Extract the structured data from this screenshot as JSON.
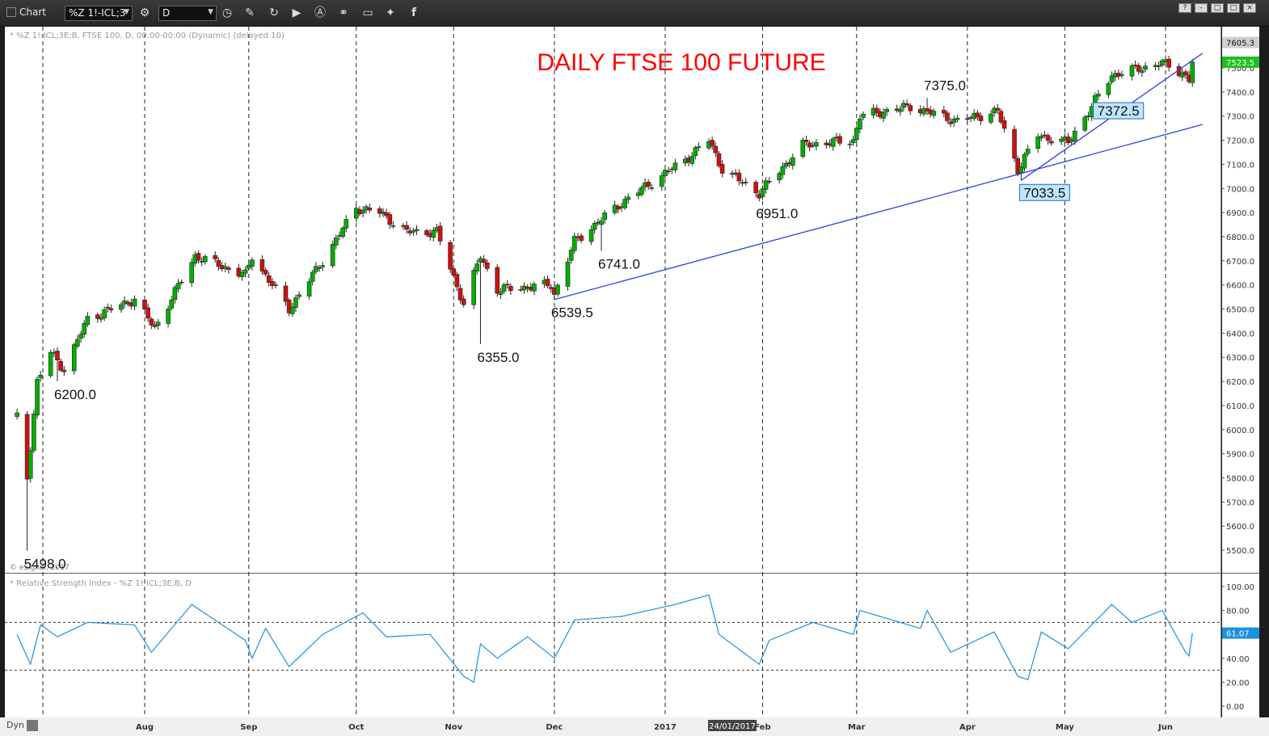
{
  "window": {
    "title": "Chart",
    "symbol": "%Z 1!-ICL;3",
    "interval": "D",
    "buttons": [
      "?",
      "–",
      "□",
      "×"
    ]
  },
  "icons": [
    "grip-icon",
    "settings-icon",
    "clock-icon",
    "pencil-icon",
    "refresh-icon",
    "play-icon",
    "alert-icon",
    "link-icon",
    "comment-icon",
    "twitter-icon",
    "facebook-icon"
  ],
  "colors": {
    "background": "#ffffff",
    "bull_candle": "#00b000",
    "bear_candle": "#d01010",
    "trendline": "#2f3fe8",
    "rsi_line": "#1e90e0",
    "title": "#ff0000",
    "callout_bg": "#bfe6ff"
  },
  "price_pane": {
    "header": "* %Z 1!-ICL;3E;B, FTSE 100, D, 00:00-00:00 (Dynamic) (delayed 10)",
    "watermark": "© eSignal, 2017",
    "title": "DAILY FTSE 100 FUTURE",
    "last_price": "7523.5",
    "high_tag": "7605.3"
  },
  "rsi_pane": {
    "header": "* Relative Strength Index - %Z 1!-ICL;3E;B, D",
    "value_label": "61.07",
    "axis_ticks": [
      "100.00",
      "80.00",
      "60.00",
      "40.00",
      "20.00",
      "0.00"
    ],
    "reference_levels": [
      70,
      30
    ]
  },
  "bottom_bar": {
    "dyn_label": "Dyn",
    "cursor_date": "24/01/2017"
  },
  "chart_data": [
    {
      "type": "candlestick",
      "title": "DAILY FTSE 100 FUTURE",
      "x_axis": {
        "type": "date",
        "start": "2016-06-27",
        "end": "2017-06-12",
        "month_labels": [
          {
            "label": "Aug",
            "date": "2016-08-01"
          },
          {
            "label": "Sep",
            "date": "2016-09-01"
          },
          {
            "label": "Oct",
            "date": "2016-10-03"
          },
          {
            "label": "Nov",
            "date": "2016-11-01"
          },
          {
            "label": "Dec",
            "date": "2016-12-01"
          },
          {
            "label": "2017",
            "date": "2017-01-03"
          },
          {
            "label": "Feb",
            "date": "2017-02-01"
          },
          {
            "label": "Mar",
            "date": "2017-03-01"
          },
          {
            "label": "Apr",
            "date": "2017-04-03"
          },
          {
            "label": "May",
            "date": "2017-05-02"
          },
          {
            "label": "Jun",
            "date": "2017-06-01"
          }
        ]
      },
      "y_axis": {
        "scale": "linear",
        "range": [
          5400,
          7650
        ],
        "ticks": [
          5500,
          5600,
          5700,
          5800,
          5900,
          6000,
          6100,
          6200,
          6300,
          6400,
          6500,
          6600,
          6700,
          6800,
          6900,
          7000,
          7100,
          7200,
          7300,
          7400,
          7500
        ]
      },
      "grid": "vertical dashed lines at month starts",
      "price_path_anchors": [
        {
          "date": "2016-06-24",
          "close": 6050
        },
        {
          "date": "2016-06-27",
          "close": 5800
        },
        {
          "date": "2016-06-30",
          "close": 6200
        },
        {
          "date": "2016-07-04",
          "close": 6320
        },
        {
          "date": "2016-07-08",
          "close": 6250
        },
        {
          "date": "2016-07-15",
          "close": 6460
        },
        {
          "date": "2016-07-29",
          "close": 6540
        },
        {
          "date": "2016-08-04",
          "close": 6420
        },
        {
          "date": "2016-08-16",
          "close": 6720
        },
        {
          "date": "2016-08-31",
          "close": 6640
        },
        {
          "date": "2016-09-02",
          "close": 6720
        },
        {
          "date": "2016-09-13",
          "close": 6500
        },
        {
          "date": "2016-09-23",
          "close": 6700
        },
        {
          "date": "2016-10-03",
          "close": 6920
        },
        {
          "date": "2016-10-10",
          "close": 6900
        },
        {
          "date": "2016-10-18",
          "close": 6820
        },
        {
          "date": "2016-10-27",
          "close": 6820
        },
        {
          "date": "2016-11-04",
          "close": 6520
        },
        {
          "date": "2016-11-09",
          "close": 6720
        },
        {
          "date": "2016-11-14",
          "close": 6580
        },
        {
          "date": "2016-11-30",
          "close": 6600
        },
        {
          "date": "2016-12-01",
          "close": 6560
        },
        {
          "date": "2016-12-07",
          "close": 6780
        },
        {
          "date": "2016-12-21",
          "close": 6940
        },
        {
          "date": "2017-01-09",
          "close": 7120
        },
        {
          "date": "2017-01-16",
          "close": 7200
        },
        {
          "date": "2017-01-20",
          "close": 7080
        },
        {
          "date": "2017-01-31",
          "close": 6980
        },
        {
          "date": "2017-02-13",
          "close": 7180
        },
        {
          "date": "2017-02-28",
          "close": 7200
        },
        {
          "date": "2017-03-02",
          "close": 7300
        },
        {
          "date": "2017-03-17",
          "close": 7340
        },
        {
          "date": "2017-03-31",
          "close": 7280
        },
        {
          "date": "2017-04-12",
          "close": 7320
        },
        {
          "date": "2017-04-18",
          "close": 7080
        },
        {
          "date": "2017-04-24",
          "close": 7220
        },
        {
          "date": "2017-05-03",
          "close": 7190
        },
        {
          "date": "2017-05-16",
          "close": 7470
        },
        {
          "date": "2017-05-31",
          "close": 7520
        },
        {
          "date": "2017-06-06",
          "close": 7480
        },
        {
          "date": "2017-06-08",
          "close": 7450
        },
        {
          "date": "2017-06-09",
          "close": 7523.5
        }
      ],
      "annotations": [
        {
          "text": "5498.0",
          "date": "2016-06-27",
          "price": 5498.0,
          "style": "plain"
        },
        {
          "text": "6200.0",
          "date": "2016-07-06",
          "price": 6200.0,
          "style": "plain"
        },
        {
          "text": "6355.0",
          "date": "2016-11-09",
          "price": 6355.0,
          "style": "plain"
        },
        {
          "text": "6539.5",
          "date": "2016-12-01",
          "price": 6539.5,
          "style": "plain"
        },
        {
          "text": "6741.0",
          "date": "2016-12-15",
          "price": 6741.0,
          "style": "plain"
        },
        {
          "text": "6951.0",
          "date": "2017-01-31",
          "price": 6951.0,
          "style": "plain"
        },
        {
          "text": "7375.0",
          "date": "2017-03-22",
          "price": 7375.0,
          "style": "plain"
        },
        {
          "text": "7033.5",
          "date": "2017-04-19",
          "price": 7033.5,
          "style": "box"
        },
        {
          "text": "7372.5",
          "date": "2017-05-11",
          "price": 7372.5,
          "style": "box"
        }
      ],
      "trendlines": [
        {
          "from": {
            "date": "2016-12-01",
            "price": 6539.5
          },
          "to": {
            "date": "2017-06-12",
            "price": 7265
          }
        },
        {
          "from": {
            "date": "2017-04-19",
            "price": 7033.5
          },
          "to": {
            "date": "2017-06-12",
            "price": 7560
          }
        }
      ]
    },
    {
      "type": "line",
      "title": "Relative Strength Index",
      "y_axis": {
        "range": [
          -5,
          110
        ],
        "ticks": [
          0,
          20,
          40,
          60,
          80,
          100
        ]
      },
      "reference_lines": [
        70,
        30
      ],
      "points": [
        {
          "date": "2016-06-24",
          "value": 60
        },
        {
          "date": "2016-06-28",
          "value": 35
        },
        {
          "date": "2016-07-01",
          "value": 68
        },
        {
          "date": "2016-07-06",
          "value": 58
        },
        {
          "date": "2016-07-15",
          "value": 70
        },
        {
          "date": "2016-07-29",
          "value": 68
        },
        {
          "date": "2016-08-03",
          "value": 45
        },
        {
          "date": "2016-08-15",
          "value": 85
        },
        {
          "date": "2016-08-31",
          "value": 55
        },
        {
          "date": "2016-09-02",
          "value": 40
        },
        {
          "date": "2016-09-06",
          "value": 65
        },
        {
          "date": "2016-09-13",
          "value": 33
        },
        {
          "date": "2016-09-23",
          "value": 60
        },
        {
          "date": "2016-10-05",
          "value": 78
        },
        {
          "date": "2016-10-12",
          "value": 58
        },
        {
          "date": "2016-10-25",
          "value": 60
        },
        {
          "date": "2016-11-04",
          "value": 25
        },
        {
          "date": "2016-11-07",
          "value": 20
        },
        {
          "date": "2016-11-09",
          "value": 52
        },
        {
          "date": "2016-11-14",
          "value": 40
        },
        {
          "date": "2016-11-23",
          "value": 58
        },
        {
          "date": "2016-12-01",
          "value": 40
        },
        {
          "date": "2016-12-07",
          "value": 72
        },
        {
          "date": "2016-12-21",
          "value": 75
        },
        {
          "date": "2017-01-06",
          "value": 85
        },
        {
          "date": "2017-01-16",
          "value": 93
        },
        {
          "date": "2017-01-19",
          "value": 60
        },
        {
          "date": "2017-01-31",
          "value": 35
        },
        {
          "date": "2017-02-03",
          "value": 55
        },
        {
          "date": "2017-02-16",
          "value": 70
        },
        {
          "date": "2017-02-28",
          "value": 60
        },
        {
          "date": "2017-03-02",
          "value": 80
        },
        {
          "date": "2017-03-20",
          "value": 65
        },
        {
          "date": "2017-03-22",
          "value": 80
        },
        {
          "date": "2017-03-29",
          "value": 45
        },
        {
          "date": "2017-04-11",
          "value": 62
        },
        {
          "date": "2017-04-18",
          "value": 25
        },
        {
          "date": "2017-04-21",
          "value": 22
        },
        {
          "date": "2017-04-25",
          "value": 62
        },
        {
          "date": "2017-05-03",
          "value": 48
        },
        {
          "date": "2017-05-16",
          "value": 85
        },
        {
          "date": "2017-05-22",
          "value": 70
        },
        {
          "date": "2017-05-31",
          "value": 80
        },
        {
          "date": "2017-06-07",
          "value": 45
        },
        {
          "date": "2017-06-08",
          "value": 42
        },
        {
          "date": "2017-06-09",
          "value": 61.07
        }
      ]
    }
  ]
}
